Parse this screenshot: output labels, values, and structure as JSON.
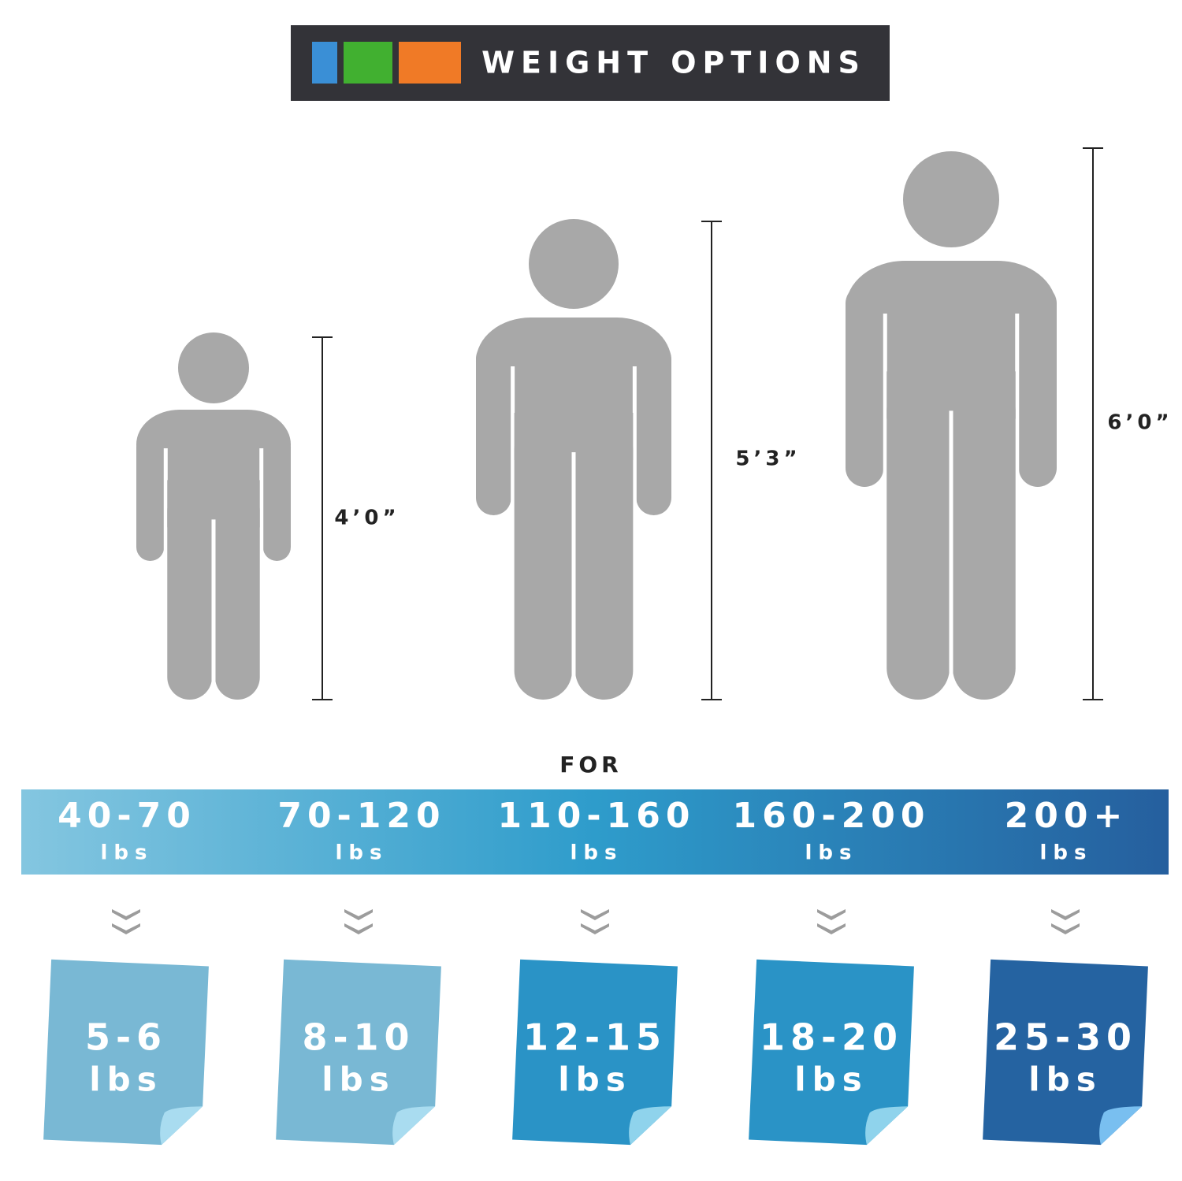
{
  "header": {
    "title": "WEIGHT OPTIONS"
  },
  "figures": [
    {
      "height": "4’0”"
    },
    {
      "height": "5’3”"
    },
    {
      "height": "6’0”"
    }
  ],
  "for_label": "FOR",
  "ranges": [
    {
      "range": "40-70",
      "unit": "lbs"
    },
    {
      "range": "70-120",
      "unit": "lbs"
    },
    {
      "range": "110-160",
      "unit": "lbs"
    },
    {
      "range": "160-200",
      "unit": "lbs"
    },
    {
      "range": "200+",
      "unit": "lbs"
    }
  ],
  "blankets": [
    {
      "weight": "5-6",
      "unit": "lbs"
    },
    {
      "weight": "8-10",
      "unit": "lbs"
    },
    {
      "weight": "12-15",
      "unit": "lbs"
    },
    {
      "weight": "18-20",
      "unit": "lbs"
    },
    {
      "weight": "25-30",
      "unit": "lbs"
    }
  ]
}
